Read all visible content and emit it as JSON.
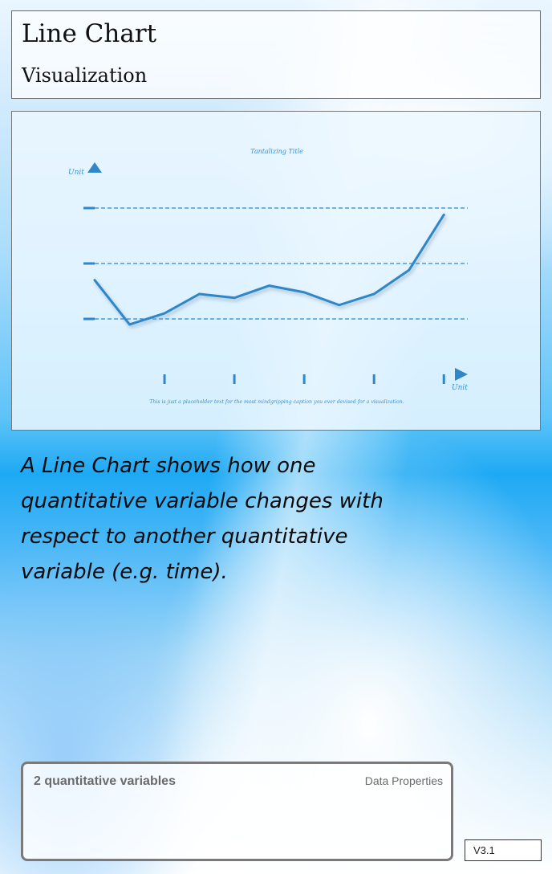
{
  "header": {
    "title": "Line Chart",
    "subtitle": "Visualization"
  },
  "chart_data": {
    "type": "line",
    "title": "Tantalizing Title",
    "caption": "This is just a placeholder text for the most mindgripping caption you ever devised for a visualization.",
    "xlabel": "Unit",
    "ylabel": "Unit",
    "x": [
      0,
      1,
      2,
      3,
      4,
      5,
      6,
      7,
      8,
      9,
      10
    ],
    "values": [
      1.7,
      0.9,
      1.1,
      1.45,
      1.38,
      1.6,
      1.48,
      1.25,
      1.45,
      1.88,
      2.88
    ],
    "ylim": [
      0,
      3
    ],
    "xlim": [
      0,
      10.5
    ],
    "gridlines_dashed": [
      1,
      2,
      3
    ],
    "line_color": "#2f87c9"
  },
  "description": "A Line Chart shows how one quantitative variable changes with respect to another quantitative variable (e.g. time).",
  "properties": {
    "summary": "2 quantitative variables",
    "label": "Data Properties"
  },
  "version": "V3.1"
}
